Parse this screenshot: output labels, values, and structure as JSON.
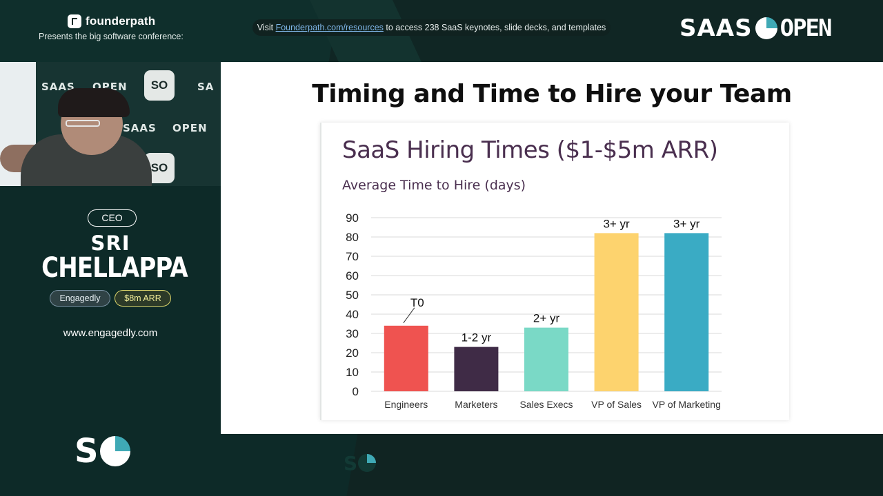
{
  "header": {
    "brand_name": "founderpath",
    "brand_subtitle": "Presents the big software conference:",
    "banner": {
      "prefix": "Visit ",
      "link_text": "Founderpath.com/resources",
      "suffix": " to access 238 SaaS keynotes, slide decks, and templates"
    },
    "event_logo": {
      "left": "SAAS",
      "right": "OPEN"
    }
  },
  "video": {
    "wall_text_1": "SAAS",
    "wall_text_2": "OPEN",
    "wall_text_3": "SAAS",
    "wall_text_4": "OPEN",
    "wall_text_5": "SA",
    "tile_1": "SO",
    "tile_2": "SO"
  },
  "speaker": {
    "role": "CEO",
    "first_name": "SRI",
    "last_name": "CHELLAPPA",
    "company": "Engagedly",
    "arr": "$8m ARR",
    "website": "www.engagedly.com"
  },
  "footer_logo": "S",
  "slide": {
    "title": "Timing and Time to Hire your Team",
    "mark": "S"
  },
  "chart_data": {
    "type": "bar",
    "title": "SaaS Hiring Times ($1-$5m ARR)",
    "subtitle": "Average Time to Hire (days)",
    "categories": [
      "Engineers",
      "Marketers",
      "Sales Execs",
      "VP of Sales",
      "VP of Marketing"
    ],
    "values": [
      34,
      23,
      33,
      82,
      82
    ],
    "data_labels": [
      "T0",
      "1-2 yr",
      "2+ yr",
      "3+ yr",
      "3+ yr"
    ],
    "colors": [
      "#ef5350",
      "#3f2b46",
      "#7ad9c6",
      "#fdd36e",
      "#3aabc4"
    ],
    "yticks": [
      0,
      10,
      20,
      30,
      40,
      50,
      60,
      70,
      80,
      90
    ],
    "ylim": [
      0,
      90
    ],
    "grid": true,
    "legend": "none"
  }
}
